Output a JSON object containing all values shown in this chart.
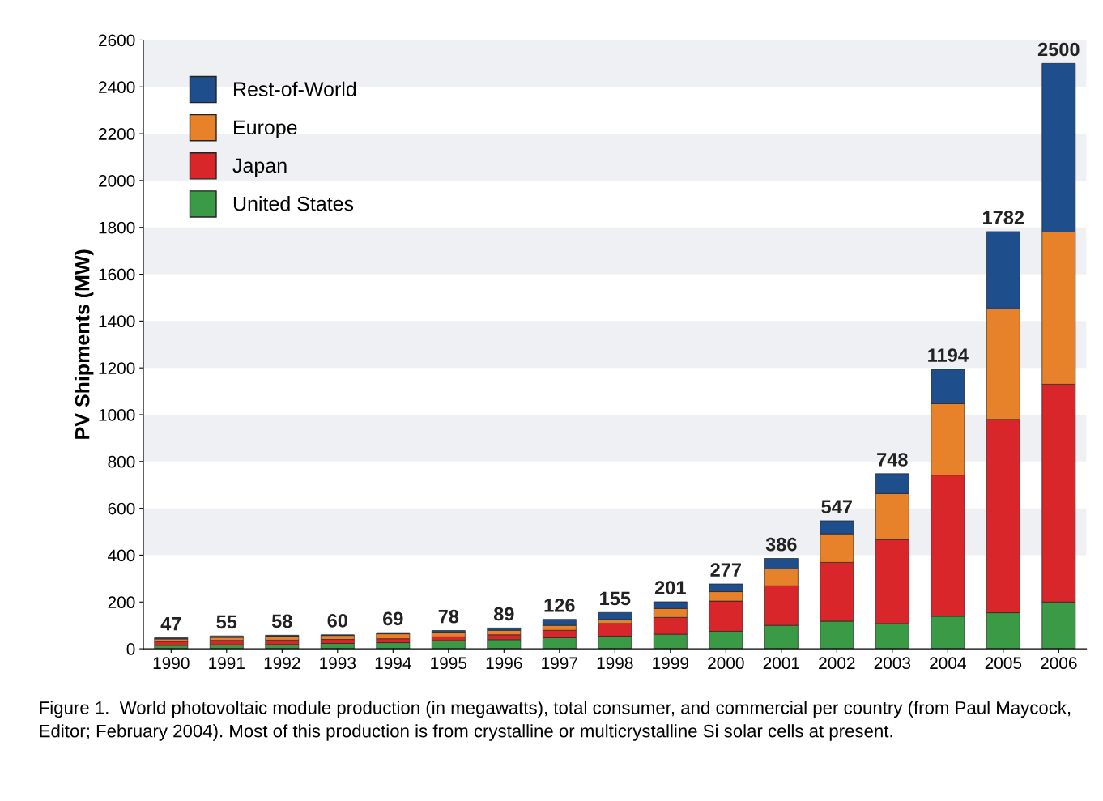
{
  "chart_data": {
    "type": "bar",
    "stacked": true,
    "ylabel": "PV Shipments (MW)",
    "categories": [
      "1990",
      "1991",
      "1992",
      "1993",
      "1994",
      "1995",
      "1996",
      "1997",
      "1998",
      "1999",
      "2000",
      "2001",
      "2002",
      "2003",
      "2004",
      "2005",
      "2006"
    ],
    "series": [
      {
        "name": "United States",
        "color": "#3a9a45",
        "values": [
          15,
          17,
          18,
          23,
          26,
          35,
          39,
          47,
          54,
          62,
          75,
          100,
          118,
          108,
          139,
          154,
          200
        ]
      },
      {
        "name": "Japan",
        "color": "#d9262b",
        "values": [
          17,
          19,
          19,
          17,
          17,
          16,
          21,
          32,
          54,
          72,
          129,
          169,
          251,
          358,
          603,
          826,
          930
        ]
      },
      {
        "name": "Europe",
        "color": "#e8822a",
        "values": [
          10,
          13,
          17,
          17,
          21,
          20,
          19,
          21,
          18,
          38,
          40,
          72,
          122,
          197,
          305,
          472,
          650
        ]
      },
      {
        "name": "Rest-of-World",
        "color": "#1f4e8c",
        "values": [
          5,
          6,
          4,
          3,
          5,
          7,
          10,
          26,
          29,
          29,
          33,
          45,
          56,
          85,
          147,
          330,
          720
        ]
      }
    ],
    "totals": [
      "47",
      "55",
      "58",
      "60",
      "69",
      "78",
      "89",
      "126",
      "155",
      "201",
      "277",
      "386",
      "547",
      "748",
      "1194",
      "1782",
      "2500"
    ],
    "ylim": [
      0,
      2600
    ],
    "yticks": [
      0,
      200,
      400,
      600,
      800,
      1000,
      1200,
      1400,
      1600,
      1800,
      2000,
      2200,
      2400,
      2600
    ],
    "bands": [
      {
        "axis": "y",
        "from": 400,
        "to": 600,
        "color": "#eef0f3"
      },
      {
        "axis": "y",
        "from": 800,
        "to": 1000,
        "color": "#eef0f3"
      },
      {
        "axis": "y",
        "from": 1200,
        "to": 1400,
        "color": "#eef0f3"
      },
      {
        "axis": "y",
        "from": 1600,
        "to": 1800,
        "color": "#eef0f3"
      },
      {
        "axis": "y",
        "from": 2000,
        "to": 2200,
        "color": "#eef0f3"
      },
      {
        "axis": "y",
        "from": 2400,
        "to": 2600,
        "color": "#eef0f3"
      }
    ],
    "legend": "top left",
    "annotations": [
      "Figure 1.  World photovoltaic module production (in megawatts), total consumer, and commercial per country (from Paul Maycock, Editor; February 2004). Most of this production is from crystalline or multicrystalline Si solar cells at present."
    ]
  }
}
